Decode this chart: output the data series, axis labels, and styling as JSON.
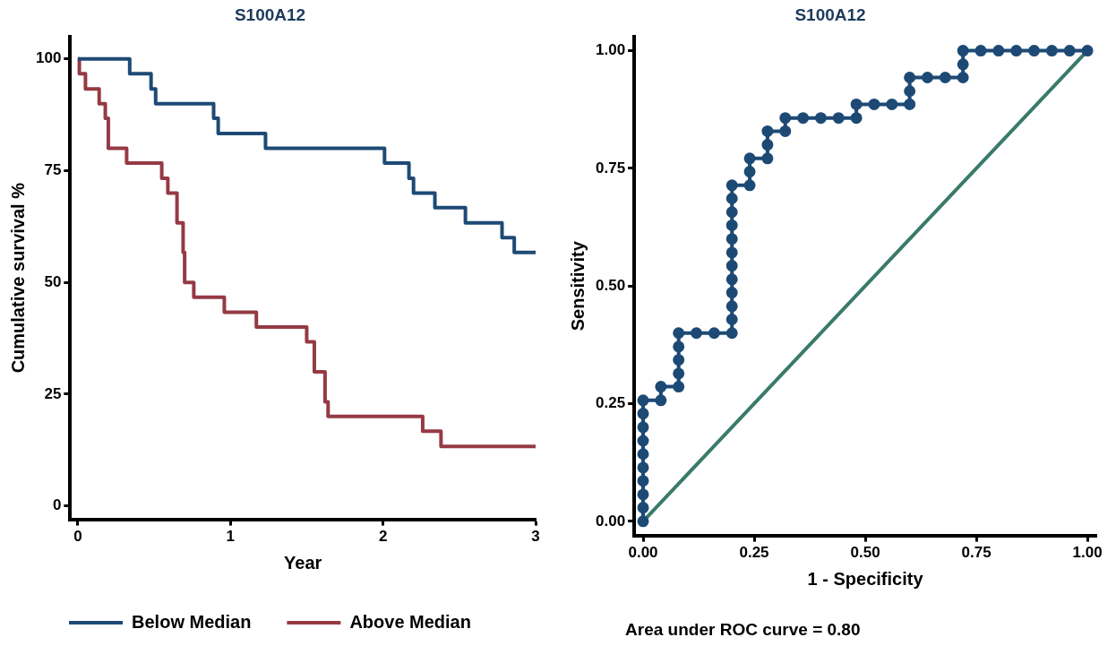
{
  "chart_data": [
    {
      "type": "step",
      "title": "S100A12",
      "xlabel": "Year",
      "ylabel": "Cumulative survival %",
      "xlim": [
        -0.05,
        3
      ],
      "ylim": [
        -3,
        105
      ],
      "xticks": [
        0,
        1,
        2,
        3
      ],
      "yticks": [
        0,
        25,
        50,
        75,
        100
      ],
      "grid": false,
      "legend": "bottom",
      "marker": "none",
      "series": [
        {
          "name": "Below Median",
          "color": "#1d4a75",
          "x": [
            0,
            0.34,
            0.48,
            0.51,
            0.89,
            0.92,
            1.23,
            2.01,
            2.17,
            2.2,
            2.34,
            2.54,
            2.78,
            2.86,
            3
          ],
          "values": [
            100,
            96.7,
            93.3,
            90,
            86.7,
            83.3,
            80,
            76.7,
            73.3,
            70,
            66.7,
            63.3,
            60,
            56.7,
            56.7
          ]
        },
        {
          "name": "Above Median",
          "color": "#953a44",
          "x": [
            0,
            0.01,
            0.05,
            0.14,
            0.18,
            0.2,
            0.32,
            0.55,
            0.59,
            0.65,
            0.69,
            0.7,
            0.76,
            0.96,
            1.17,
            1.5,
            1.55,
            1.62,
            1.64,
            2.26,
            2.38,
            3
          ],
          "values": [
            100,
            96.7,
            93.3,
            90,
            86.7,
            80,
            76.7,
            73.3,
            70,
            63.3,
            56.7,
            50,
            46.7,
            43.3,
            40,
            36.7,
            30,
            23.3,
            20,
            16.7,
            13.3,
            13.3
          ]
        }
      ]
    },
    {
      "type": "line",
      "title": "S100A12",
      "xlabel": "1 - Specificity",
      "ylabel": "Sensitivity",
      "xlim": [
        -0.02,
        1.02
      ],
      "ylim": [
        -0.03,
        1.03
      ],
      "xticks": [
        {
          "value": 0,
          "label": "0.00"
        },
        {
          "value": 0.25,
          "label": "0.25"
        },
        {
          "value": 0.5,
          "label": "0.50"
        },
        {
          "value": 0.75,
          "label": "0.75"
        },
        {
          "value": 1,
          "label": "1.00"
        }
      ],
      "yticks": [
        {
          "value": 0,
          "label": "0.00"
        },
        {
          "value": 0.25,
          "label": "0.25"
        },
        {
          "value": 0.5,
          "label": "0.50"
        },
        {
          "value": 0.75,
          "label": "0.75"
        },
        {
          "value": 1,
          "label": "1.00"
        }
      ],
      "grid": false,
      "legend": false,
      "marker": "circle",
      "annotations": [
        "Area under ROC curve = 0.80"
      ],
      "series": [
        {
          "color": "#1d4a75",
          "x": [
            0,
            0,
            0,
            0,
            0,
            0,
            0,
            0,
            0,
            0,
            0.04,
            0.04,
            0.08,
            0.08,
            0.08,
            0.08,
            0.08,
            0.12,
            0.16,
            0.2,
            0.2,
            0.2,
            0.2,
            0.2,
            0.2,
            0.2,
            0.2,
            0.2,
            0.2,
            0.2,
            0.2,
            0.24,
            0.24,
            0.24,
            0.28,
            0.28,
            0.28,
            0.32,
            0.32,
            0.36,
            0.4,
            0.44,
            0.48,
            0.48,
            0.52,
            0.56,
            0.6,
            0.6,
            0.6,
            0.64,
            0.68,
            0.72,
            0.72,
            0.72,
            0.76,
            0.8,
            0.84,
            0.88,
            0.92,
            0.96,
            1
          ],
          "values": [
            0,
            0.029,
            0.057,
            0.086,
            0.114,
            0.143,
            0.171,
            0.2,
            0.229,
            0.257,
            0.257,
            0.286,
            0.286,
            0.314,
            0.343,
            0.371,
            0.4,
            0.4,
            0.4,
            0.4,
            0.429,
            0.457,
            0.486,
            0.514,
            0.543,
            0.571,
            0.6,
            0.629,
            0.657,
            0.686,
            0.714,
            0.714,
            0.743,
            0.771,
            0.771,
            0.8,
            0.829,
            0.829,
            0.857,
            0.857,
            0.857,
            0.857,
            0.857,
            0.886,
            0.886,
            0.886,
            0.886,
            0.914,
            0.943,
            0.943,
            0.943,
            0.943,
            0.971,
            1,
            1,
            1,
            1,
            1,
            1,
            1,
            1
          ]
        },
        {
          "color": "#3a7a6a",
          "marker": "none",
          "x": [
            0,
            1
          ],
          "values": [
            0,
            1
          ]
        }
      ]
    }
  ]
}
